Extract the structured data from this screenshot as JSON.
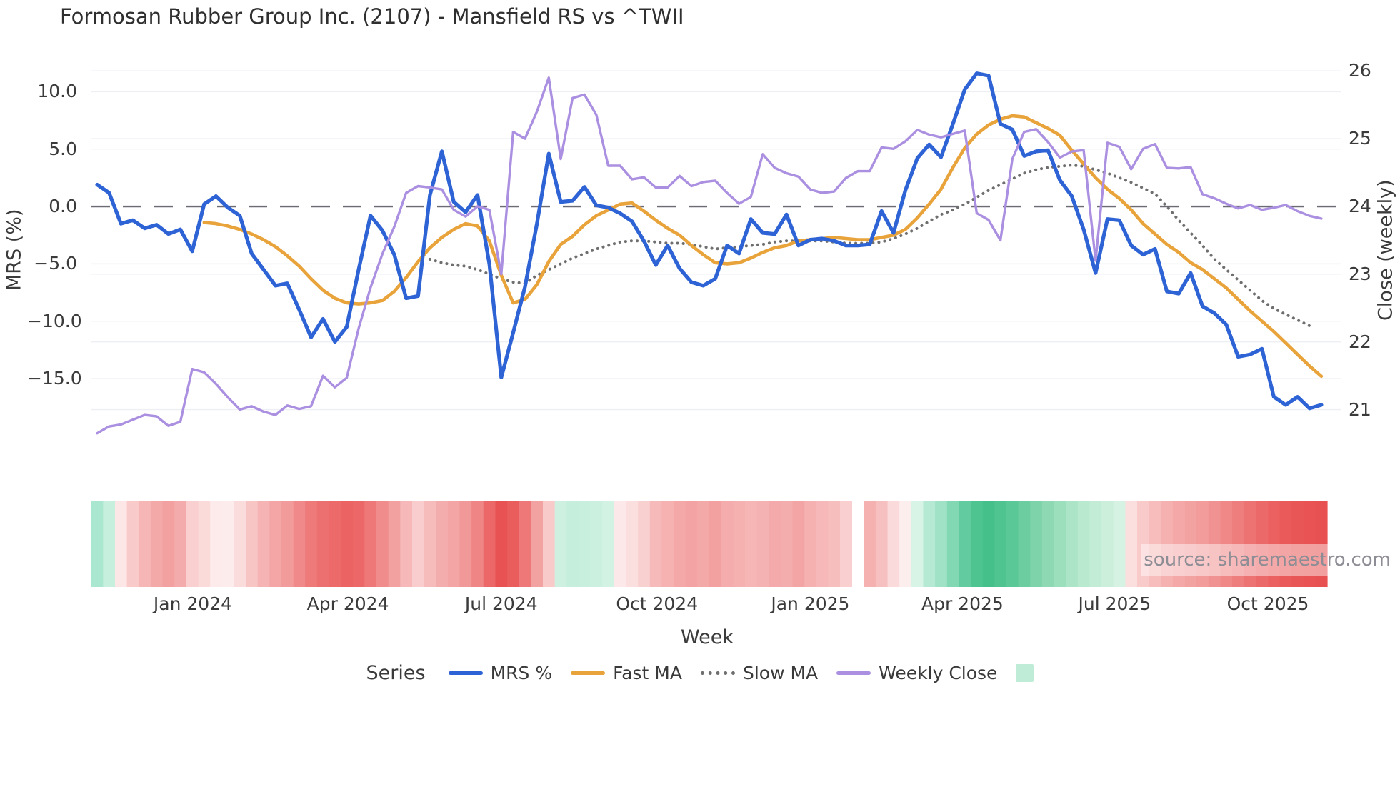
{
  "title": "Formosan Rubber Group Inc. (2107) - Mansfield RS vs ^TWII",
  "watermark": "source: sharemaestro.com",
  "colors": {
    "mrs": "#2e63d5",
    "fast_ma": "#e9a33b",
    "slow_ma": "#6f6f6f",
    "weekly_close": "#ab8fe0",
    "zero_line": "#6b6b76",
    "grid": "#edeff4",
    "legend_square": "#bfecd7",
    "title_text": "#2f2f2f",
    "tick_text": "#3b3b3b",
    "watermark_text": "#8d8d95"
  },
  "axes": {
    "left": {
      "label": "MRS (%)",
      "tick_labels": [
        "10.0",
        "5.0",
        "0.0",
        "−5.0",
        "−10.0",
        "−15.0"
      ],
      "tick_values": [
        10,
        5,
        0,
        -5,
        -10,
        -15
      ]
    },
    "right": {
      "label": "Close (weekly)",
      "tick_labels": [
        "26",
        "25",
        "24",
        "23",
        "22",
        "21"
      ],
      "tick_values": [
        26,
        25,
        24,
        23,
        22,
        21
      ]
    },
    "x": {
      "label": "Week",
      "tick_labels": [
        "Jan 2024",
        "Apr 2024",
        "Jul 2024",
        "Oct 2024",
        "Jan 2025",
        "Apr 2025",
        "Jul 2025",
        "Oct 2025"
      ],
      "tick_weeks": [
        8.05,
        21.1,
        34.0,
        47.1,
        60.0,
        72.8,
        85.6,
        98.5
      ]
    }
  },
  "legend": {
    "title": "Series",
    "items": [
      {
        "label": "MRS %",
        "swatch": "line",
        "color_key": "mrs"
      },
      {
        "label": "Fast MA",
        "swatch": "line",
        "color_key": "fast_ma"
      },
      {
        "label": "Slow MA",
        "swatch": "dotted",
        "color_key": "slow_ma"
      },
      {
        "label": "Weekly Close",
        "swatch": "line",
        "color_key": "weekly_close"
      },
      {
        "label": "",
        "swatch": "square",
        "color_key": "legend_square"
      }
    ]
  },
  "chart_data": {
    "type": "line",
    "x_unit": "weekly index, 0 = first plotted week (early Nov 2023)",
    "weeks_total": 104,
    "ylim_left": [
      -20.6,
      12.7
    ],
    "ylim_right": [
      20.51,
      26.15
    ],
    "zero_reference_left": 0,
    "series": [
      {
        "name": "MRS %",
        "axis": "left",
        "style": "solid",
        "color_key": "mrs",
        "start_week": 0,
        "values": [
          1.9,
          1.2,
          -1.5,
          -1.2,
          -1.9,
          -1.6,
          -2.4,
          -2.0,
          -3.9,
          0.2,
          0.9,
          -0.1,
          -0.8,
          -4.1,
          -5.5,
          -6.9,
          -6.7,
          -9.0,
          -11.4,
          -9.8,
          -11.8,
          -10.5,
          -5.5,
          -0.8,
          -2.1,
          -4.2,
          -8.0,
          -7.8,
          1.0,
          4.8,
          0.4,
          -0.5,
          1.0,
          -5.0,
          -14.9,
          -11.0,
          -7.0,
          -1.5,
          4.6,
          0.4,
          0.5,
          1.7,
          0.1,
          -0.1,
          -0.6,
          -1.3,
          -3.0,
          -5.1,
          -3.4,
          -5.4,
          -6.6,
          -6.9,
          -6.3,
          -3.4,
          -4.1,
          -1.1,
          -2.3,
          -2.4,
          -0.7,
          -3.4,
          -2.9,
          -2.8,
          -3.0,
          -3.4,
          -3.4,
          -3.3,
          -0.4,
          -2.3,
          1.4,
          4.2,
          5.4,
          4.3,
          7.2,
          10.2,
          11.6,
          11.4,
          7.2,
          6.7,
          4.4,
          4.8,
          4.9,
          2.3,
          0.9,
          -2.0,
          -5.8,
          -1.1,
          -1.2,
          -3.4,
          -4.2,
          -3.7,
          -7.4,
          -7.6,
          -5.8,
          -8.7,
          -9.3,
          -10.3,
          -13.1,
          -12.9,
          -12.4,
          -16.6,
          -17.3,
          -16.6,
          -17.6,
          -17.3
        ]
      },
      {
        "name": "Fast MA",
        "axis": "left",
        "style": "solid",
        "color_key": "fast_ma",
        "start_week": 9,
        "values": [
          -1.4,
          -1.5,
          -1.7,
          -2.0,
          -2.4,
          -2.9,
          -3.5,
          -4.3,
          -5.2,
          -6.3,
          -7.3,
          -8.0,
          -8.4,
          -8.5,
          -8.4,
          -8.2,
          -7.4,
          -6.2,
          -4.8,
          -3.6,
          -2.7,
          -2.0,
          -1.5,
          -1.7,
          -3.0,
          -6.0,
          -8.4,
          -8.1,
          -6.8,
          -4.8,
          -3.3,
          -2.6,
          -1.6,
          -0.8,
          -0.3,
          0.2,
          0.3,
          -0.4,
          -1.2,
          -1.9,
          -2.5,
          -3.4,
          -4.2,
          -4.9,
          -5.0,
          -4.9,
          -4.5,
          -4.0,
          -3.6,
          -3.4,
          -3.0,
          -2.9,
          -2.8,
          -2.7,
          -2.8,
          -2.9,
          -2.9,
          -2.7,
          -2.5,
          -2.0,
          -1.0,
          0.2,
          1.5,
          3.4,
          5.1,
          6.3,
          7.1,
          7.6,
          7.9,
          7.8,
          7.3,
          6.8,
          6.2,
          4.9,
          3.7,
          2.5,
          1.5,
          0.7,
          -0.3,
          -1.5,
          -2.4,
          -3.3,
          -4.0,
          -4.9,
          -5.5,
          -6.3,
          -7.1,
          -8.1,
          -9.1,
          -10.0,
          -10.9,
          -11.9,
          -12.9,
          -13.9,
          -14.8
        ]
      },
      {
        "name": "Slow MA",
        "axis": "left",
        "style": "dotted",
        "color_key": "slow_ma",
        "start_week": 28,
        "values": [
          -4.6,
          -4.9,
          -5.1,
          -5.2,
          -5.5,
          -5.9,
          -6.3,
          -6.6,
          -6.7,
          -6.0,
          -5.5,
          -5.0,
          -4.5,
          -4.1,
          -3.7,
          -3.4,
          -3.1,
          -3.0,
          -3.0,
          -3.1,
          -3.2,
          -3.2,
          -3.3,
          -3.5,
          -3.7,
          -3.6,
          -3.5,
          -3.4,
          -3.3,
          -3.1,
          -3.0,
          -3.0,
          -3.0,
          -3.0,
          -3.1,
          -3.2,
          -3.2,
          -3.2,
          -3.1,
          -2.8,
          -2.4,
          -1.9,
          -1.3,
          -0.7,
          -0.3,
          0.2,
          0.8,
          1.4,
          1.9,
          2.4,
          2.9,
          3.2,
          3.4,
          3.5,
          3.6,
          3.5,
          3.2,
          2.9,
          2.5,
          2.1,
          1.6,
          1.1,
          0.0,
          -1.2,
          -2.3,
          -3.4,
          -4.6,
          -5.5,
          -6.4,
          -7.3,
          -8.2,
          -8.9,
          -9.4,
          -9.9,
          -10.4
        ]
      },
      {
        "name": "Weekly Close",
        "axis": "right",
        "style": "solid",
        "color_key": "weekly_close",
        "start_week": 0,
        "values": [
          20.65,
          20.75,
          20.78,
          20.85,
          20.92,
          20.9,
          20.76,
          20.82,
          21.6,
          21.55,
          21.38,
          21.18,
          21.0,
          21.05,
          20.97,
          20.92,
          21.06,
          21.01,
          21.05,
          21.5,
          21.33,
          21.47,
          22.2,
          22.8,
          23.3,
          23.7,
          24.2,
          24.3,
          24.28,
          24.25,
          23.95,
          23.85,
          24.0,
          23.95,
          23.0,
          25.1,
          25.0,
          25.4,
          25.9,
          24.7,
          25.6,
          25.65,
          25.35,
          24.6,
          24.6,
          24.4,
          24.43,
          24.28,
          24.28,
          24.45,
          24.3,
          24.36,
          24.38,
          24.2,
          24.04,
          24.14,
          24.77,
          24.57,
          24.49,
          24.44,
          24.25,
          24.2,
          24.22,
          24.42,
          24.52,
          24.52,
          24.87,
          24.85,
          24.96,
          25.13,
          25.06,
          25.02,
          25.07,
          25.12,
          23.9,
          23.8,
          23.5,
          24.7,
          25.1,
          25.14,
          24.95,
          24.72,
          24.81,
          24.83,
          23.2,
          24.94,
          24.88,
          24.55,
          24.85,
          24.92,
          24.57,
          24.56,
          24.58,
          24.18,
          24.12,
          24.04,
          23.97,
          24.02,
          23.95,
          23.98,
          24.02,
          23.93,
          23.86,
          23.82
        ]
      }
    ],
    "heatmap": {
      "description": "weekly red/green intensity strip below the chart (one cell per week; blank cell at week 64)",
      "cell_colors": [
        "#a9e7d0",
        "#c6efdd",
        "#fde6e6",
        "#f9caca",
        "#f6b6b6",
        "#f4a9a9",
        "#f2a0a0",
        "#f4abab",
        "#f9cfcf",
        "#fbdada",
        "#fdeaea",
        "#fdecec",
        "#fbdcdc",
        "#f8c5c5",
        "#f6b3b3",
        "#f4a6a6",
        "#f29b9b",
        "#f08989",
        "#ee7a7a",
        "#ed7070",
        "#ec6a6a",
        "#eb6363",
        "#ec6868",
        "#ee7878",
        "#f08c8c",
        "#f2a0a0",
        "#f6b8b8",
        "#f9cdcd",
        "#f6bcbc",
        "#f4adad",
        "#f3a5a5",
        "#f19898",
        "#ef8585",
        "#ec6767",
        "#e85252",
        "#ea5d5d",
        "#ee7878",
        "#f3a2a2",
        "#f9caca",
        "#cdf0e0",
        "#c5eedd",
        "#c8efde",
        "#cbf0e0",
        "#d2f2e4",
        "#fce8e8",
        "#fbdede",
        "#f9d0d0",
        "#f7baba",
        "#f6b1b1",
        "#f4a8a8",
        "#f3a3a3",
        "#f4a9a9",
        "#f2a0a0",
        "#f4acac",
        "#f5b0b0",
        "#f6b6b6",
        "#f5b2b2",
        "#f4aaaa",
        "#f4adad",
        "#f3a5a5",
        "#f5b0b0",
        "#f6b8b8",
        "#f7bebe",
        "#f9cfcf",
        null,
        "#f5b0b0",
        "#f7c0c0",
        "#fadada",
        "#fdeeee",
        "#d8f4e7",
        "#b5e9d3",
        "#9fe2c6",
        "#83d8b4",
        "#62cb9f",
        "#4ec490",
        "#45c08a",
        "#4fc491",
        "#5bc897",
        "#6ccda0",
        "#7ed3aa",
        "#8ed9b3",
        "#9cdfbc",
        "#abe4c6",
        "#b9e9cf",
        "#c2ecd6",
        "#cbefdb",
        "#d5f2e2",
        "#fbdede",
        "#f9caca",
        "#f7bcbc",
        "#f5b0b0",
        "#f4a8a8",
        "#f3a2a2",
        "#f29c9c",
        "#f19292",
        "#f08888",
        "#ee7e7e",
        "#ed7272",
        "#ec6969",
        "#eb6161",
        "#ea5a5a",
        "#e95656",
        "#e95353",
        "#e85151"
      ]
    }
  }
}
